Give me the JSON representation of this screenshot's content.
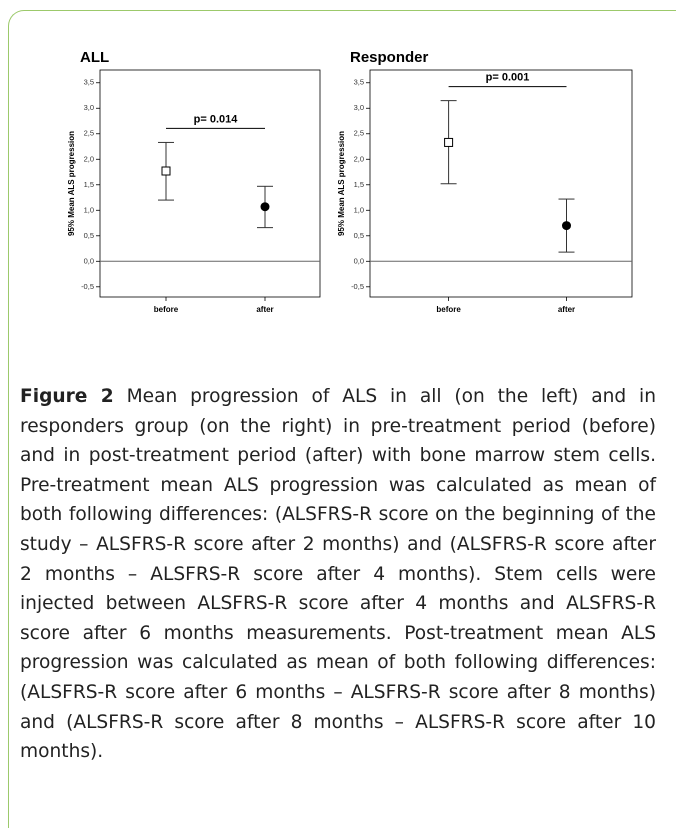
{
  "chart_data": [
    {
      "type": "errorbar",
      "title": "ALL",
      "ylabel": "95% Mean ALS progression",
      "categories": [
        "before",
        "after"
      ],
      "values": [
        1.77,
        1.07
      ],
      "lower": [
        1.2,
        0.66
      ],
      "upper": [
        2.33,
        1.47
      ],
      "markers": [
        "square-open",
        "circle"
      ],
      "color": "#000000",
      "ylim": [
        -0.7,
        3.75
      ],
      "yticks": [
        {
          "value": -0.5,
          "label": "-0,5"
        },
        {
          "value": 0,
          "label": "0,0"
        },
        {
          "value": 0.5,
          "label": "0,5"
        },
        {
          "value": 1,
          "label": "1,0"
        },
        {
          "value": 1.5,
          "label": "1,5"
        },
        {
          "value": 2,
          "label": "2,0"
        },
        {
          "value": 2.5,
          "label": "2,5"
        },
        {
          "value": 3,
          "label": "3,0"
        },
        {
          "value": 3.5,
          "label": "3,5"
        }
      ],
      "annotation": "p= 0.014"
    },
    {
      "type": "errorbar",
      "title": "Responder",
      "ylabel": "95% Mean ALS progression",
      "categories": [
        "before",
        "after"
      ],
      "values": [
        2.33,
        0.7
      ],
      "lower": [
        1.52,
        0.18
      ],
      "upper": [
        3.15,
        1.22
      ],
      "markers": [
        "square-open",
        "circle"
      ],
      "color": "#000000",
      "ylim": [
        -0.7,
        3.75
      ],
      "yticks": [
        {
          "value": -0.5,
          "label": "-0,5"
        },
        {
          "value": 0,
          "label": "0,0"
        },
        {
          "value": 0.5,
          "label": "0,5"
        },
        {
          "value": 1,
          "label": "1,0"
        },
        {
          "value": 1.5,
          "label": "1,5"
        },
        {
          "value": 2,
          "label": "2,0"
        },
        {
          "value": 2.5,
          "label": "2,5"
        },
        {
          "value": 3,
          "label": "3,0"
        },
        {
          "value": 3.5,
          "label": "3,5"
        }
      ],
      "annotation": "p= 0.001"
    }
  ],
  "caption": {
    "label": "Figure 2",
    "text": " Mean progression of ALS in all (on the left) and in responders group (on the right) in pre-treatment period (before) and in post-treatment period (after) with bone marrow stem cells. Pre-treatment mean ALS progression was calculated as mean of both following differences: (ALSFRS-R score on the beginning of the study – ALSFRS-R score after 2 months) and (ALSFRS-R score after 2 months – ALSFRS-R score after 4 months). Stem cells were injected between ALSFRS-R score after 4 months and ALSFRS-R score after 6 months measurements. Post-treatment mean ALS progression was calculated as mean of both following differences: (ALSFRS-R score after 6 months – ALSFRS-R score after 8 months) and (ALSFRS-R score after 8 months – ALSFRS-R score after 10 months)."
  }
}
